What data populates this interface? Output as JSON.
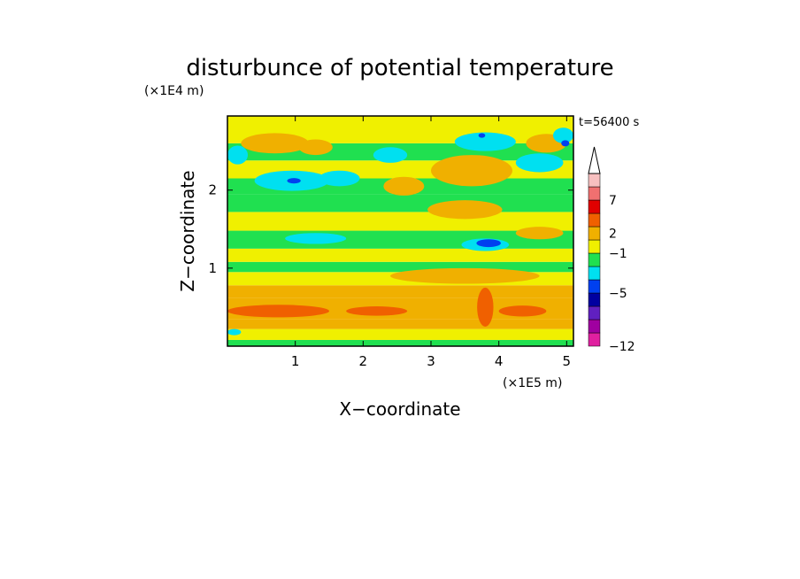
{
  "chart_data": {
    "type": "heatmap",
    "title": "disturbunce of potential temperature",
    "xlabel": "X−coordinate",
    "ylabel": "Z−coordinate",
    "x_unit": "(×1E5 m)",
    "y_unit": "(×1E4 m)",
    "time_label": "t=56400 s",
    "xlim": [
      0,
      5.1
    ],
    "ylim": [
      0,
      2.95
    ],
    "x_ticks": [
      {
        "value": 1,
        "label": "1"
      },
      {
        "value": 2,
        "label": "2"
      },
      {
        "value": 3,
        "label": "3"
      },
      {
        "value": 4,
        "label": "4"
      },
      {
        "value": 5,
        "label": "5"
      }
    ],
    "y_ticks": [
      {
        "value": 1,
        "label": "1"
      },
      {
        "value": 2,
        "label": "2"
      }
    ],
    "colorbar": {
      "levels": [
        {
          "color": "#e020a0"
        },
        {
          "color": "#a000a0"
        },
        {
          "color": "#6020c0"
        },
        {
          "color": "#0000a0"
        },
        {
          "color": "#0040f0"
        },
        {
          "color": "#00e0f0"
        },
        {
          "color": "#20e050"
        },
        {
          "color": "#f0f000"
        },
        {
          "color": "#f0b000"
        },
        {
          "color": "#f06000"
        },
        {
          "color": "#e00000"
        },
        {
          "color": "#f07070"
        },
        {
          "color": "#f8c0c0"
        }
      ],
      "labels": [
        {
          "value": -12,
          "label": "−12"
        },
        {
          "value": -5,
          "label": "−5"
        },
        {
          "value": -1,
          "label": "−1"
        },
        {
          "value": 2,
          "label": "2"
        },
        {
          "value": 7,
          "label": "7"
        }
      ],
      "extend_top": true
    },
    "bands": [
      {
        "z": [
          0.0,
          0.08
        ],
        "color": "#20e050"
      },
      {
        "z": [
          0.08,
          0.22
        ],
        "color": "#f0f000"
      },
      {
        "z": [
          0.22,
          0.35
        ],
        "color": "#f0b000"
      },
      {
        "z": [
          0.35,
          0.62
        ],
        "color": "#f0b000"
      },
      {
        "z": [
          0.62,
          0.78
        ],
        "color": "#f0b000"
      },
      {
        "z": [
          0.78,
          0.95
        ],
        "color": "#f0f000"
      },
      {
        "z": [
          0.95,
          1.08
        ],
        "color": "#20e050"
      },
      {
        "z": [
          1.08,
          1.25
        ],
        "color": "#f0f000"
      },
      {
        "z": [
          1.25,
          1.48
        ],
        "color": "#20e050"
      },
      {
        "z": [
          1.48,
          1.72
        ],
        "color": "#f0f000"
      },
      {
        "z": [
          1.72,
          1.95
        ],
        "color": "#20e050"
      },
      {
        "z": [
          1.95,
          2.15
        ],
        "color": "#20e050"
      },
      {
        "z": [
          2.15,
          2.38
        ],
        "color": "#f0f000"
      },
      {
        "z": [
          2.38,
          2.6
        ],
        "color": "#20e050"
      },
      {
        "z": [
          2.6,
          2.95
        ],
        "color": "#f0f000"
      }
    ],
    "blobs": [
      {
        "cx": 0.75,
        "cz": 0.45,
        "rx": 0.75,
        "rz": 0.08,
        "color": "#f06000"
      },
      {
        "cx": 2.2,
        "cz": 0.45,
        "rx": 0.45,
        "rz": 0.06,
        "color": "#f06000"
      },
      {
        "cx": 3.8,
        "cz": 0.5,
        "rx": 0.12,
        "rz": 0.25,
        "color": "#f06000"
      },
      {
        "cx": 4.35,
        "cz": 0.45,
        "rx": 0.35,
        "rz": 0.07,
        "color": "#f06000"
      },
      {
        "cx": 3.5,
        "cz": 0.9,
        "rx": 1.1,
        "rz": 0.1,
        "color": "#f0b000"
      },
      {
        "cx": 0.7,
        "cz": 2.6,
        "rx": 0.5,
        "rz": 0.13,
        "color": "#f0b000"
      },
      {
        "cx": 1.3,
        "cz": 2.55,
        "rx": 0.25,
        "rz": 0.1,
        "color": "#f0b000"
      },
      {
        "cx": 2.6,
        "cz": 2.05,
        "rx": 0.3,
        "rz": 0.12,
        "color": "#f0b000"
      },
      {
        "cx": 3.6,
        "cz": 2.25,
        "rx": 0.6,
        "rz": 0.2,
        "color": "#f0b000"
      },
      {
        "cx": 4.7,
        "cz": 2.6,
        "rx": 0.3,
        "rz": 0.12,
        "color": "#f0b000"
      },
      {
        "cx": 3.5,
        "cz": 1.75,
        "rx": 0.55,
        "rz": 0.12,
        "color": "#f0b000"
      },
      {
        "cx": 4.6,
        "cz": 1.45,
        "rx": 0.35,
        "rz": 0.08,
        "color": "#f0b000"
      },
      {
        "cx": 0.15,
        "cz": 2.45,
        "rx": 0.15,
        "rz": 0.12,
        "color": "#00e0f0"
      },
      {
        "cx": 0.95,
        "cz": 2.12,
        "rx": 0.55,
        "rz": 0.13,
        "color": "#00e0f0"
      },
      {
        "cx": 1.65,
        "cz": 2.15,
        "rx": 0.3,
        "rz": 0.1,
        "color": "#00e0f0"
      },
      {
        "cx": 2.4,
        "cz": 2.45,
        "rx": 0.25,
        "rz": 0.1,
        "color": "#00e0f0"
      },
      {
        "cx": 3.8,
        "cz": 2.62,
        "rx": 0.45,
        "rz": 0.12,
        "color": "#00e0f0"
      },
      {
        "cx": 4.6,
        "cz": 2.35,
        "rx": 0.35,
        "rz": 0.12,
        "color": "#00e0f0"
      },
      {
        "cx": 4.95,
        "cz": 2.7,
        "rx": 0.15,
        "rz": 0.1,
        "color": "#00e0f0"
      },
      {
        "cx": 3.8,
        "cz": 1.3,
        "rx": 0.35,
        "rz": 0.08,
        "color": "#00e0f0"
      },
      {
        "cx": 1.3,
        "cz": 1.38,
        "rx": 0.45,
        "rz": 0.07,
        "color": "#00e0f0"
      },
      {
        "cx": 0.1,
        "cz": 0.18,
        "rx": 0.1,
        "rz": 0.04,
        "color": "#00e0f0"
      },
      {
        "cx": 0.98,
        "cz": 2.12,
        "rx": 0.1,
        "rz": 0.035,
        "color": "#0040f0"
      },
      {
        "cx": 3.85,
        "cz": 1.32,
        "rx": 0.18,
        "rz": 0.05,
        "color": "#0040f0"
      },
      {
        "cx": 4.98,
        "cz": 2.6,
        "rx": 0.06,
        "rz": 0.04,
        "color": "#0040f0"
      },
      {
        "cx": 3.75,
        "cz": 2.7,
        "rx": 0.05,
        "rz": 0.03,
        "color": "#0040f0"
      }
    ]
  }
}
